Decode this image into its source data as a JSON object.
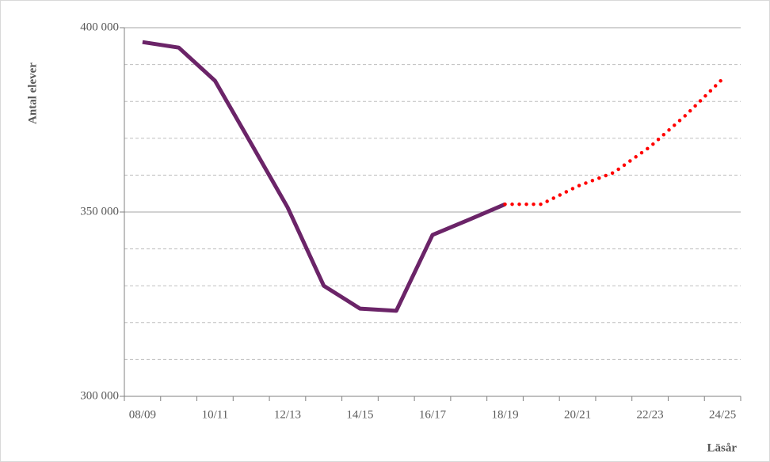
{
  "chart_data": {
    "type": "line",
    "y_axis_label": "Antal elever",
    "x_axis_label": "Läsår",
    "categories": [
      "08/09",
      null,
      "10/11",
      null,
      "12/13",
      null,
      "14/15",
      null,
      "16/17",
      null,
      "18/19",
      null,
      "20/21",
      null,
      "22/23",
      null,
      "24/25"
    ],
    "series": [
      {
        "color": "#6b2468",
        "style": "solid",
        "values": [
          396100,
          394600,
          385600,
          368500,
          351300,
          330000,
          323800,
          323200,
          343800,
          347900,
          352100,
          null,
          null,
          null,
          null,
          null,
          null
        ]
      },
      {
        "color": "#ff0000",
        "style": "dotted",
        "values": [
          null,
          null,
          null,
          null,
          null,
          null,
          null,
          null,
          null,
          null,
          352100,
          352100,
          357000,
          360700,
          367700,
          376400,
          386100
        ]
      }
    ],
    "ylim": [
      300000,
      400000
    ],
    "yticks": [
      {
        "value": 300000,
        "label": "300 000"
      },
      {
        "value": 350000,
        "label": "350 000"
      },
      {
        "value": 400000,
        "label": "400 000"
      }
    ],
    "minor_yticks": [
      310000,
      320000,
      330000,
      340000,
      360000,
      370000,
      380000,
      390000
    ],
    "grid": true
  }
}
